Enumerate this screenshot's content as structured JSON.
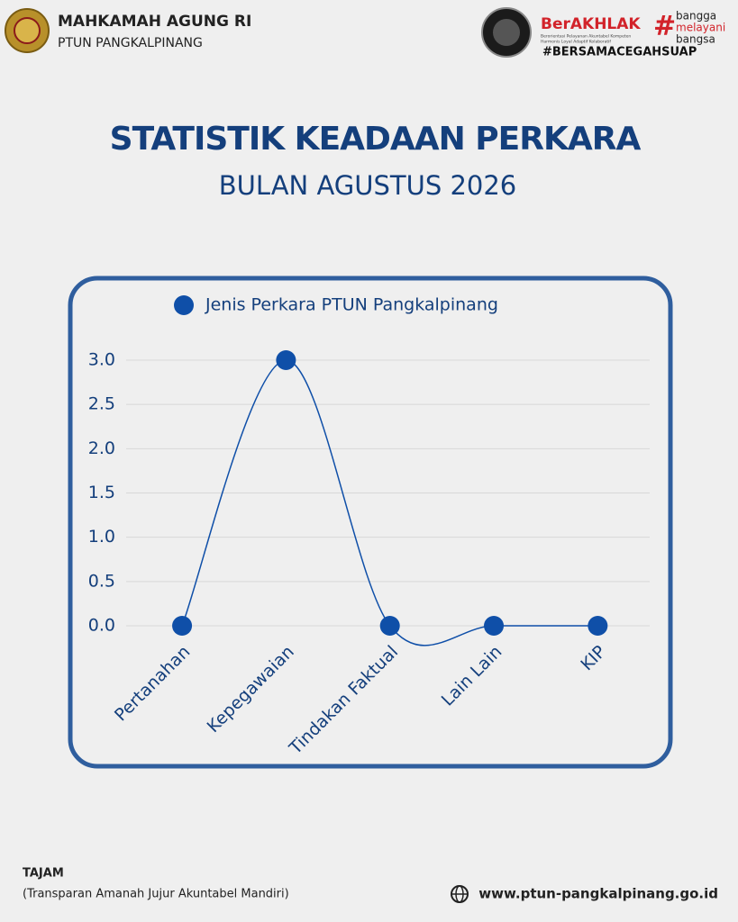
{
  "header": {
    "org": "MAHKAMAH AGUNG RI",
    "unit": "PTUN PANGKALPINANG",
    "berakhlak": "BerAKHLAK",
    "berakhlak_sub": [
      "Berorientasi Pelayanan Akuntabel Kompeten",
      "Harmonis Loyal Adaptif Kolaboratif"
    ],
    "bangga": [
      "bangga",
      "melayani",
      "bangsa"
    ],
    "hashtag": "#BERSAMACEGAHSUAP"
  },
  "chart_data": {
    "type": "line",
    "title": "STATISTIK KEADAAN PERKARA",
    "subtitle": "BULAN AGUSTUS 2026",
    "categories": [
      "Pertanahan",
      "Kepegawaian",
      "Tindakan Faktual",
      "Lain Lain",
      "KIP"
    ],
    "series": [
      {
        "name": "Jenis Perkara PTUN Pangkalpinang",
        "color": "#0f4fa8",
        "values": [
          0,
          3,
          0,
          0,
          0
        ]
      }
    ],
    "ylim": [
      0,
      3
    ],
    "yticks": [
      {
        "value": 0,
        "label": "0.0"
      },
      {
        "value": 0.5,
        "label": "0.5"
      },
      {
        "value": 1,
        "label": "1.0"
      },
      {
        "value": 1.5,
        "label": "1.5"
      },
      {
        "value": 2,
        "label": "2.0"
      },
      {
        "value": 2.5,
        "label": "2.5"
      },
      {
        "value": 3,
        "label": "3.0"
      }
    ],
    "grid": true,
    "smooth": true
  },
  "footer": {
    "motto": "TAJAM",
    "motto_full": "(Transparan Amanah Jujur Akuntabel Mandiri)",
    "website": "www.ptun-pangkalpinang.go.id"
  }
}
